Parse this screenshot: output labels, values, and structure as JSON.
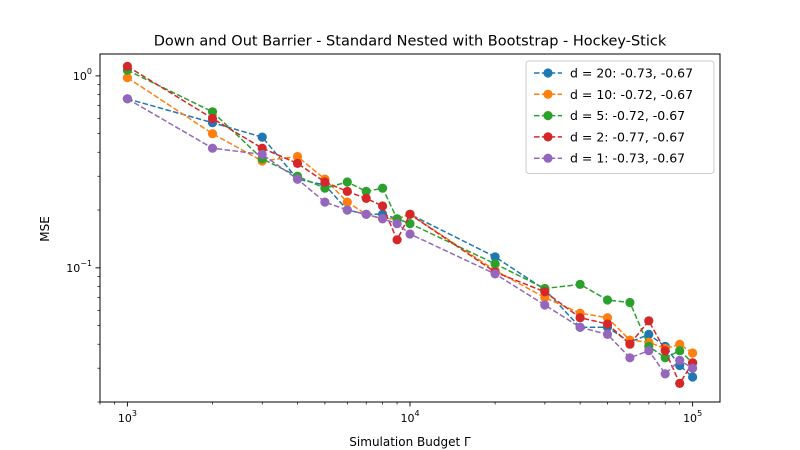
{
  "chart_data": {
    "type": "line",
    "title": "Down and Out Barrier - Standard Nested with Bootstrap - Hockey-Stick",
    "xlabel": "Simulation Budget Γ",
    "ylabel": "MSE",
    "xscale": "log",
    "yscale": "log",
    "xlim": [
      800,
      125000
    ],
    "ylim": [
      0.02,
      1.3
    ],
    "x_ticks": [
      {
        "value": 1000,
        "base": "10",
        "exp": "3"
      },
      {
        "value": 10000,
        "base": "10",
        "exp": "4"
      },
      {
        "value": 100000,
        "base": "10",
        "exp": "5"
      }
    ],
    "y_ticks": [
      {
        "value": 1,
        "base": "10",
        "exp": "0"
      },
      {
        "value": 0.1,
        "base": "10",
        "exp": "−1"
      }
    ],
    "grid": false,
    "legend_position": "top-right",
    "x": [
      1000,
      2000,
      3000,
      4000,
      5000,
      6000,
      7000,
      8000,
      9000,
      10000,
      20000,
      30000,
      40000,
      50000,
      60000,
      70000,
      80000,
      90000,
      100000
    ],
    "series": [
      {
        "name": "d = 20: -0.73, -0.67",
        "color": "#1f77b4",
        "values": [
          0.76,
          0.57,
          0.48,
          0.29,
          0.27,
          0.2,
          0.19,
          0.19,
          0.18,
          0.19,
          0.114,
          0.077,
          0.049,
          0.049,
          0.041,
          0.045,
          0.039,
          0.031,
          0.027
        ]
      },
      {
        "name": "d = 10: -0.72, -0.67",
        "color": "#ff7f0e",
        "values": [
          0.98,
          0.5,
          0.36,
          0.38,
          0.29,
          0.22,
          0.19,
          0.18,
          0.18,
          0.19,
          0.097,
          0.07,
          0.058,
          0.055,
          0.042,
          0.041,
          0.038,
          0.04,
          0.036
        ]
      },
      {
        "name": "d = 5: -0.72, -0.67",
        "color": "#2ca02c",
        "values": [
          1.07,
          0.65,
          0.37,
          0.3,
          0.26,
          0.28,
          0.25,
          0.26,
          0.18,
          0.17,
          0.105,
          0.078,
          0.082,
          0.068,
          0.066,
          0.039,
          0.034,
          0.037,
          0.032
        ]
      },
      {
        "name": "d = 2: -0.77, -0.67",
        "color": "#d62728",
        "values": [
          1.12,
          0.6,
          0.42,
          0.35,
          0.28,
          0.25,
          0.23,
          0.21,
          0.14,
          0.19,
          0.095,
          0.075,
          0.055,
          0.051,
          0.04,
          0.053,
          0.037,
          0.025,
          0.032
        ]
      },
      {
        "name": "d = 1: -0.73, -0.67",
        "color": "#9467bd",
        "values": [
          0.76,
          0.42,
          0.39,
          0.29,
          0.22,
          0.2,
          0.19,
          0.18,
          0.17,
          0.15,
          0.093,
          0.064,
          0.049,
          0.045,
          0.034,
          0.037,
          0.028,
          0.033,
          0.03
        ]
      }
    ]
  }
}
